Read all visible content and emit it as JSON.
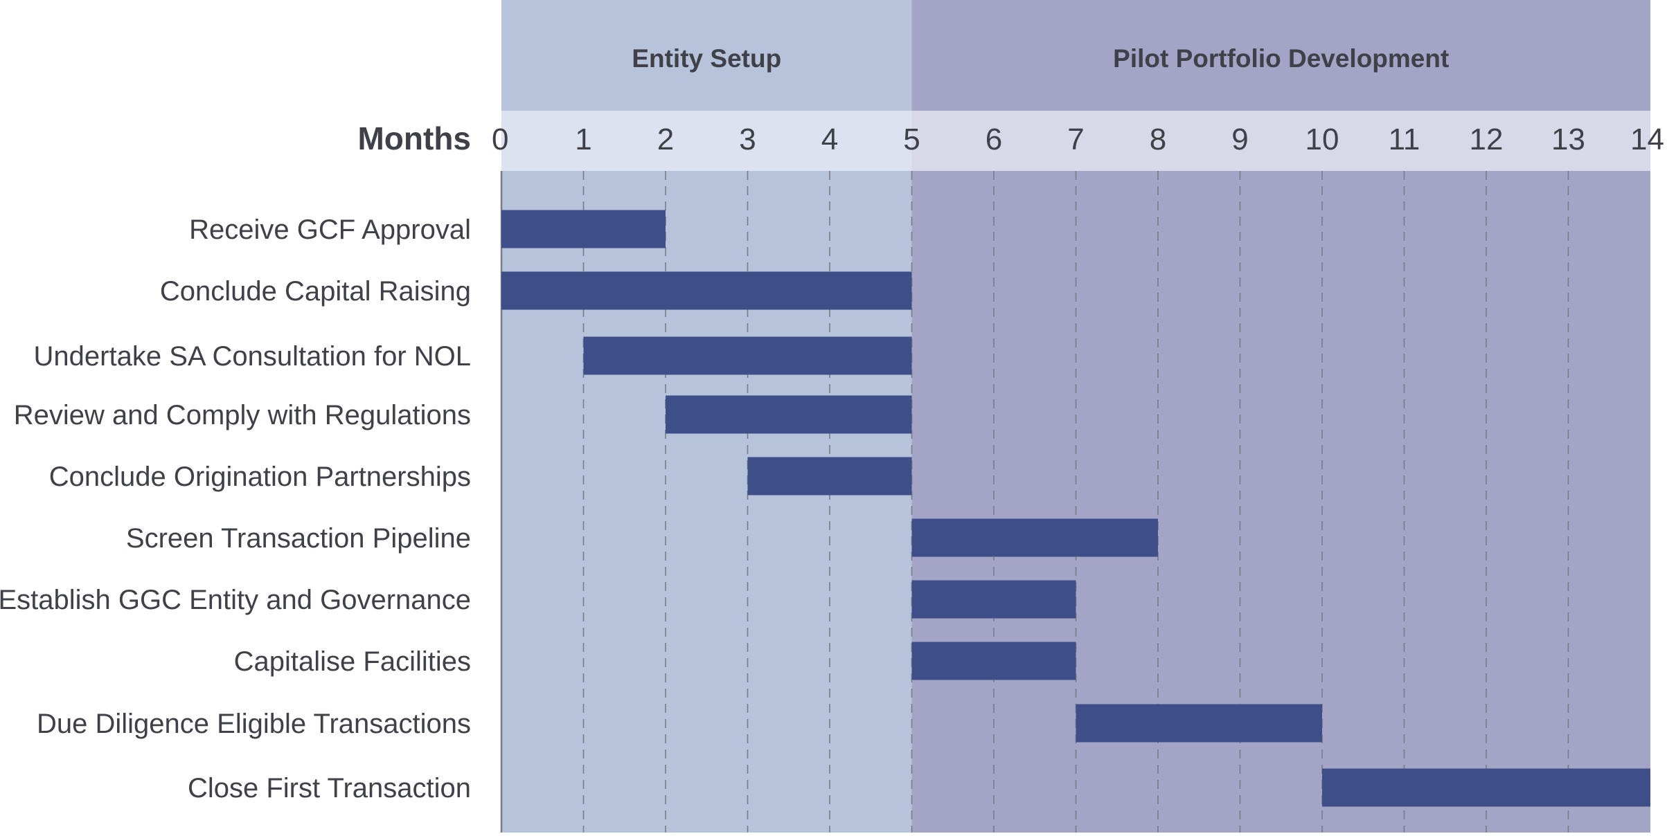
{
  "chart_data": {
    "type": "gantt",
    "xlabel": "Months",
    "xlim": [
      0,
      14
    ],
    "x_ticks": [
      "0",
      "1",
      "2",
      "3",
      "4",
      "5",
      "6",
      "7",
      "8",
      "9",
      "10",
      "11",
      "12",
      "13",
      "14"
    ],
    "grid": "vertical dashed",
    "phases": [
      {
        "name": "Entity Setup",
        "start": 0,
        "end": 5,
        "color": "#b7c3da",
        "header_color": "#b7c3da",
        "band_color": "#dce2ef"
      },
      {
        "name": "Pilot Portfolio Development",
        "start": 5,
        "end": 14,
        "color": "#a3a4c6",
        "header_color": "#a3a4c6",
        "band_color": "#d7d8e8"
      }
    ],
    "bar_color": "#3e4e88",
    "tasks": [
      {
        "name": "Receive GCF Approval",
        "start": 0,
        "end": 2
      },
      {
        "name": "Conclude Capital Raising",
        "start": 0,
        "end": 5
      },
      {
        "name": "Undertake SA Consultation for NOL",
        "start": 1,
        "end": 5
      },
      {
        "name": "Review and Comply with Regulations",
        "start": 2,
        "end": 5
      },
      {
        "name": "Conclude Origination Partnerships",
        "start": 3,
        "end": 5
      },
      {
        "name": "Screen Transaction Pipeline",
        "start": 5,
        "end": 8
      },
      {
        "name": "Establish GGC Entity and Governance",
        "start": 5,
        "end": 7
      },
      {
        "name": "Capitalise Facilities",
        "start": 5,
        "end": 7
      },
      {
        "name": "Due Diligence Eligible Transactions",
        "start": 7,
        "end": 10
      },
      {
        "name": "Close First Transaction",
        "start": 10,
        "end": 14
      }
    ]
  }
}
